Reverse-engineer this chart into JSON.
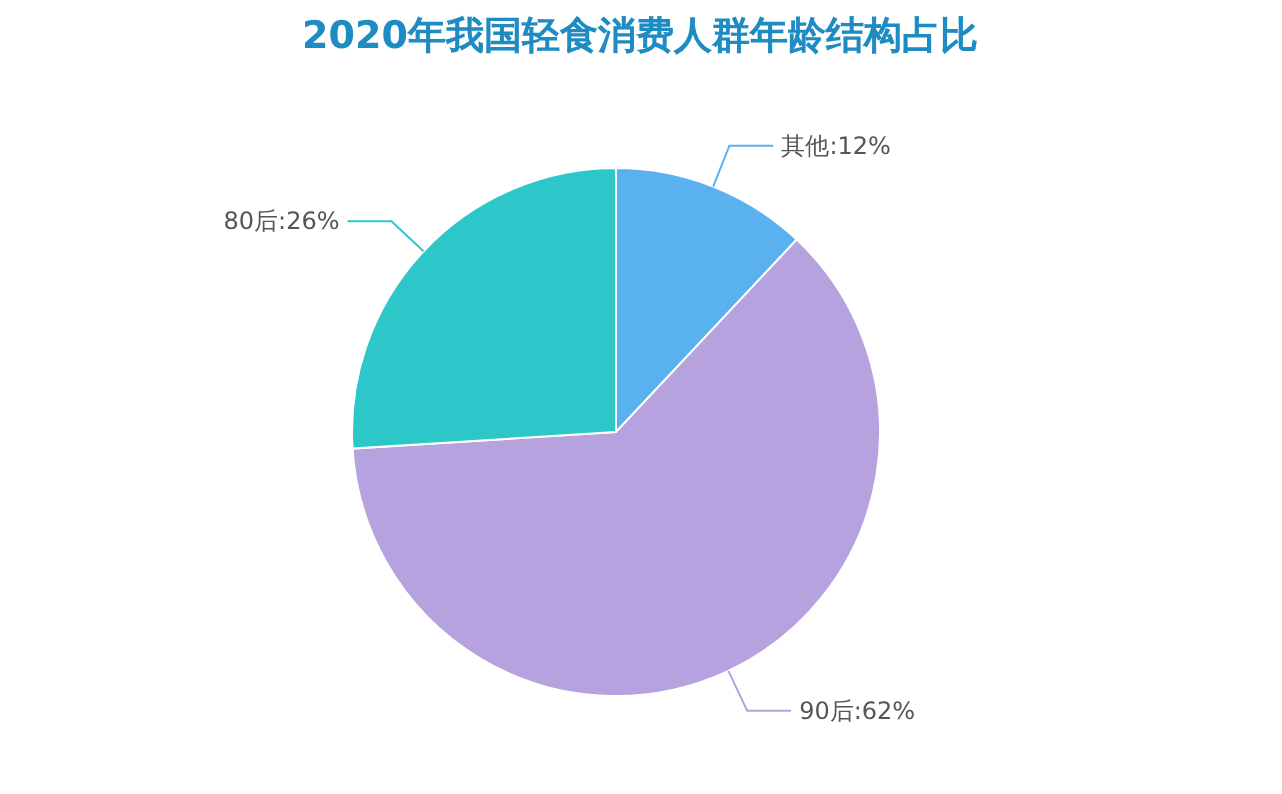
{
  "chart_data": {
    "type": "pie",
    "title": "2020年我国轻食消费人群年龄结构占比",
    "categories": [
      "其他",
      "90后",
      "80后"
    ],
    "values": [
      12,
      62,
      26
    ],
    "value_labels": [
      "12%",
      "62%",
      "26%"
    ],
    "colors": [
      "#5ab1ef",
      "#b6a2de",
      "#2ec7c9"
    ]
  }
}
